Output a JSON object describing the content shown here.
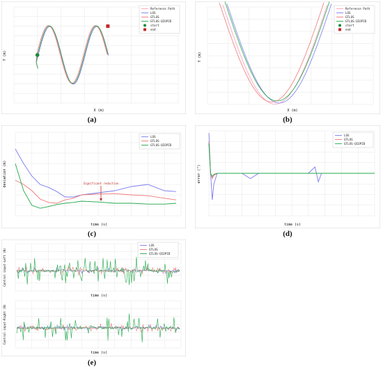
{
  "figures": {
    "a": {
      "label": "(a)"
    },
    "b": {
      "label": "(b)"
    },
    "c": {
      "label": "(c)"
    },
    "d": {
      "label": "(d)"
    },
    "e": {
      "label": "(e)"
    }
  },
  "chart_data": [
    {
      "id": "a",
      "type": "line",
      "xlabel": "X (m)",
      "ylabel": "Y (m)",
      "xlim": [
        -10,
        60
      ],
      "ylim": [
        -10,
        40
      ],
      "xticks": [
        -10,
        0,
        10,
        20,
        30,
        40,
        50,
        60
      ],
      "yticks": [
        -10,
        -5,
        0,
        5,
        10,
        15,
        20,
        25,
        30,
        35,
        40
      ],
      "legend_position": "top-right",
      "grid": true,
      "colors": {
        "reference": "#ff9db8",
        "los": "#7b7bf0",
        "gtlos": "#f07878",
        "gtlos_qiopid": "#22a84a",
        "start": "#1a8a3a",
        "end": "#c02a2a"
      },
      "legend": [
        {
          "name": "Reference Path",
          "color": "#ff9db8",
          "marker": "line"
        },
        {
          "name": "LOS",
          "color": "#7b7bf0",
          "marker": "line"
        },
        {
          "name": "GTLOS",
          "color": "#f07878",
          "marker": "line"
        },
        {
          "name": "GTLOS-QIOPID",
          "color": "#22a84a",
          "marker": "line"
        },
        {
          "name": "start",
          "color": "#1a8a3a",
          "marker": "circle"
        },
        {
          "name": "end",
          "color": "#c02a2a",
          "marker": "square"
        }
      ],
      "start": [
        0,
        15
      ],
      "end": [
        30,
        30
      ]
    },
    {
      "id": "b",
      "type": "line",
      "xlabel": "X (m)",
      "ylabel": "Y (m)",
      "legend_position": "top-right",
      "grid": true,
      "legend": [
        {
          "name": "Reference Path",
          "color": "#ff9db8",
          "marker": "line"
        },
        {
          "name": "LOS",
          "color": "#7b7bf0",
          "marker": "line"
        },
        {
          "name": "GTLOS",
          "color": "#f07878",
          "marker": "line"
        },
        {
          "name": "GTLOS-QIOPID",
          "color": "#22a84a",
          "marker": "line"
        },
        {
          "name": "start",
          "color": "#1a8a3a",
          "marker": "circle"
        },
        {
          "name": "end",
          "color": "#c02a2a",
          "marker": "square"
        }
      ]
    },
    {
      "id": "c",
      "type": "line",
      "xlabel": "time (s)",
      "ylabel": "deviation (m)",
      "xlim": [
        0,
        100
      ],
      "ylim": [
        0,
        2
      ],
      "annotation": "Significant reduction",
      "legend_position": "top-right",
      "grid": true,
      "series": [
        {
          "name": "LOS",
          "color": "#7b7bf0",
          "x": [
            0,
            5,
            10,
            15,
            20,
            25,
            30,
            35,
            40,
            50,
            60,
            70,
            80,
            90,
            97
          ],
          "values": [
            1.6,
            1.25,
            0.95,
            0.75,
            0.68,
            0.58,
            0.45,
            0.45,
            0.5,
            0.55,
            0.6,
            0.7,
            0.75,
            0.6,
            0.58
          ]
        },
        {
          "name": "GTLOS",
          "color": "#f07878",
          "x": [
            0,
            5,
            10,
            15,
            20,
            25,
            30,
            35,
            40,
            50,
            60,
            70,
            80,
            90,
            97
          ],
          "values": [
            0.85,
            0.75,
            0.6,
            0.4,
            0.32,
            0.3,
            0.38,
            0.42,
            0.5,
            0.52,
            0.53,
            0.5,
            0.48,
            0.42,
            0.38
          ]
        },
        {
          "name": "GTLOS-QIOPID",
          "color": "#22a84a",
          "x": [
            0,
            5,
            10,
            15,
            20,
            25,
            30,
            35,
            40,
            50,
            60,
            70,
            80,
            90,
            97
          ],
          "values": [
            1.25,
            0.6,
            0.25,
            0.18,
            0.22,
            0.27,
            0.3,
            0.32,
            0.35,
            0.33,
            0.3,
            0.3,
            0.28,
            0.28,
            0.3
          ]
        }
      ]
    },
    {
      "id": "d",
      "type": "line",
      "xlabel": "time (s)",
      "ylabel": "error (°)",
      "xlim": [
        0,
        100
      ],
      "ylim": [
        -40,
        40
      ],
      "legend_position": "top-right",
      "grid": true,
      "series": [
        {
          "name": "LOS",
          "color": "#7b7bf0",
          "x": [
            0,
            1,
            2,
            3,
            5,
            10,
            20,
            25,
            30,
            35,
            40,
            55,
            60,
            64,
            66,
            68,
            75,
            80,
            100
          ],
          "values": [
            38,
            0,
            -25,
            -10,
            0,
            0,
            0,
            -5,
            0,
            0,
            0,
            0,
            0,
            6,
            -8,
            0,
            0,
            0,
            0
          ]
        },
        {
          "name": "GTLOS",
          "color": "#f07878",
          "x": [
            0,
            1,
            2,
            3,
            5,
            10,
            20,
            30,
            50,
            60,
            80,
            100
          ],
          "values": [
            30,
            0,
            -5,
            -2,
            0,
            0,
            0,
            0,
            0,
            0,
            0,
            0
          ]
        },
        {
          "name": "GTLOS-QIOPID",
          "color": "#22a84a",
          "x": [
            0,
            1,
            2,
            3,
            5,
            10,
            20,
            30,
            50,
            60,
            80,
            100
          ],
          "values": [
            28,
            0,
            -3,
            -1,
            0,
            0,
            0,
            0,
            0,
            0,
            0,
            0
          ]
        }
      ]
    },
    {
      "id": "e",
      "type": "line",
      "subplots": [
        {
          "ylabel": "Control input-Left (N)",
          "xlabel": "time (s)"
        },
        {
          "ylabel": "Control input-Right (N)",
          "xlabel": "time (s)"
        }
      ],
      "legend_position": "top-right",
      "grid": true,
      "series": [
        {
          "name": "LOS",
          "color": "#7b7bf0"
        },
        {
          "name": "GTLOS",
          "color": "#f07878"
        },
        {
          "name": "GTLOS-QIOPID",
          "color": "#22a84a"
        }
      ]
    }
  ]
}
